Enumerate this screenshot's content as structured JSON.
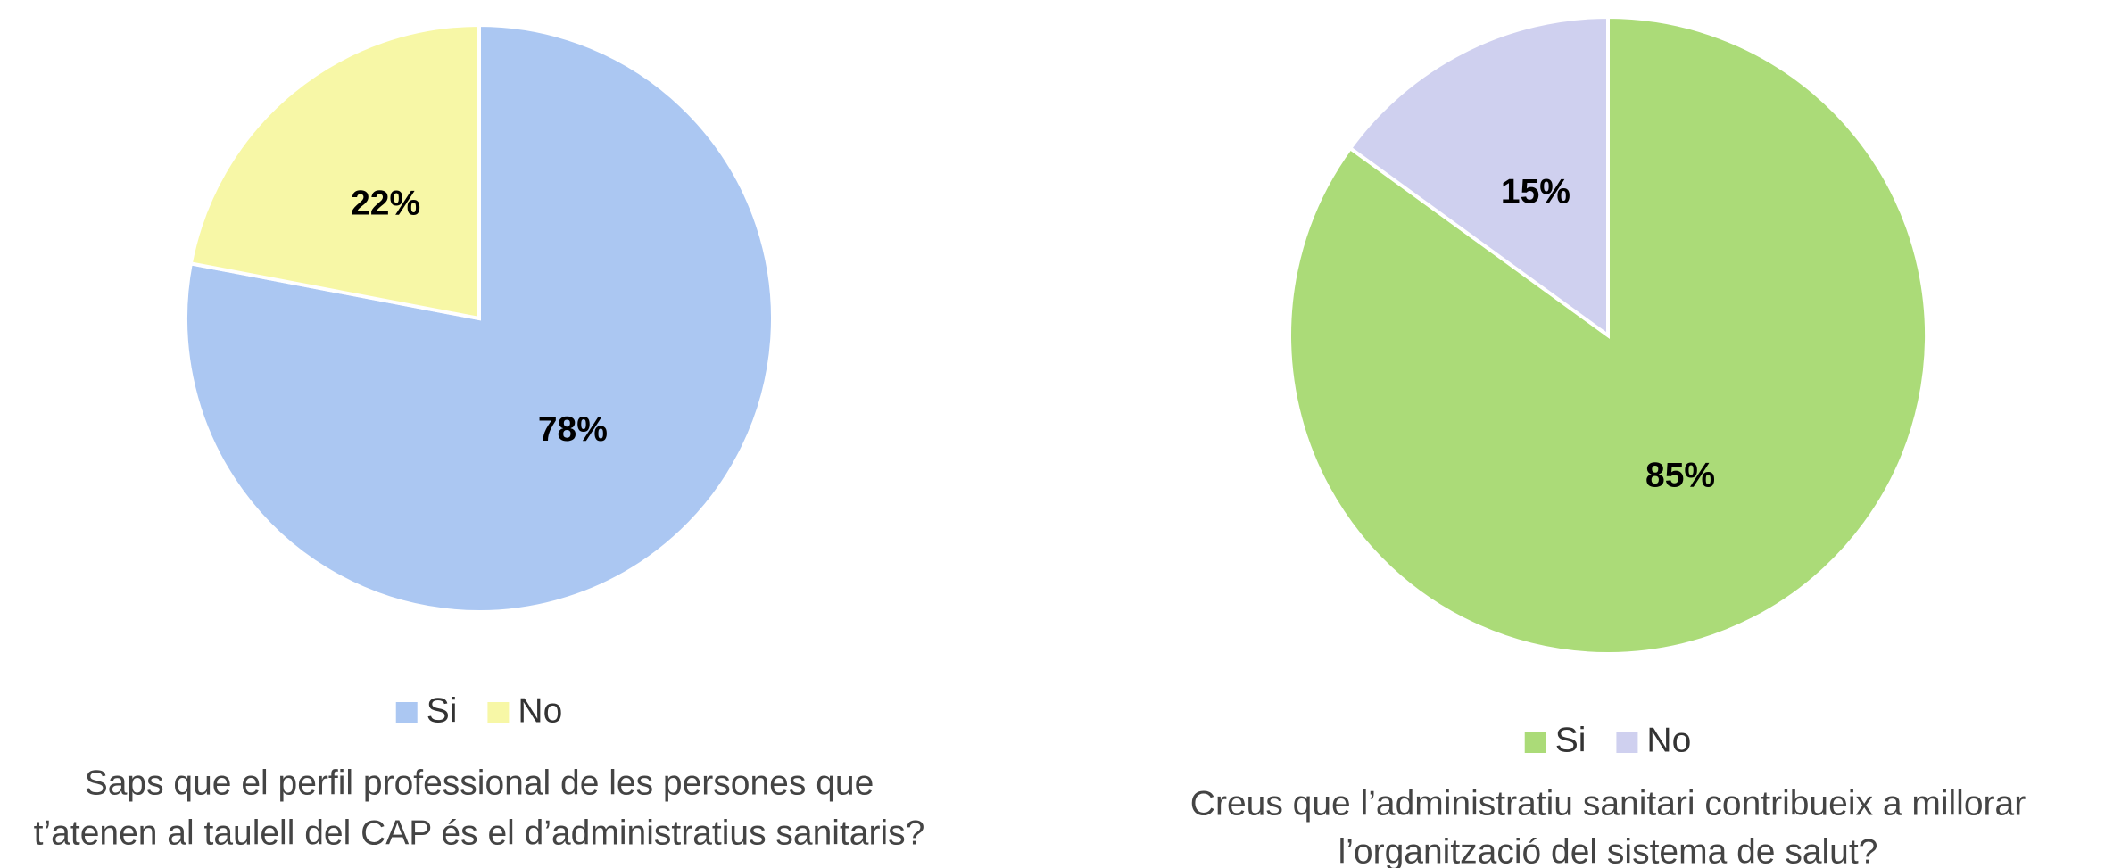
{
  "chart_data": [
    {
      "type": "pie",
      "categories": [
        "Si",
        "No"
      ],
      "values": [
        78,
        22
      ],
      "value_labels": [
        "78%",
        "22%"
      ],
      "colors": [
        "#abc7f2",
        "#f7f7a6"
      ],
      "title": [
        "Saps que el perfil professional de les persones que",
        "t’atenen al taulell del CAP és el d’administratius sanitaris?"
      ]
    },
    {
      "type": "pie",
      "categories": [
        "Si",
        "No"
      ],
      "values": [
        85,
        15
      ],
      "value_labels": [
        "85%",
        "15%"
      ],
      "colors": [
        "#abdb78",
        "#cfd0ef"
      ],
      "title": [
        "Creus que l’administratiu sanitari contribueix a millorar",
        "l’organització del sistema de salut?"
      ]
    }
  ]
}
